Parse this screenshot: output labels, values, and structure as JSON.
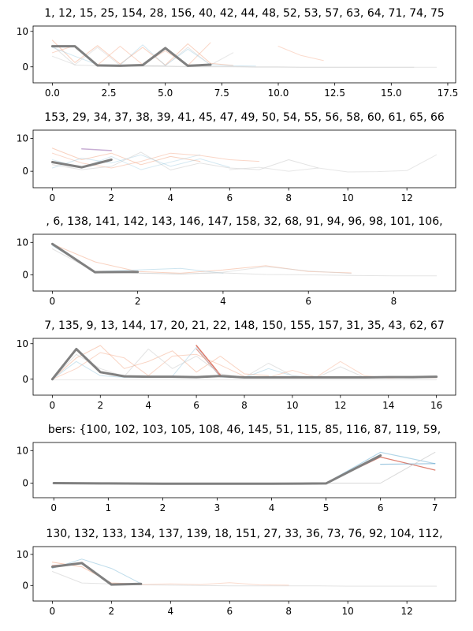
{
  "chart_data": [
    {
      "type": "line",
      "title": "1, 12, 15, 25, 154, 28, 156, 40, 42, 44, 48, 52, 53, 57, 63, 64, 71, 74, 75",
      "xlim": [
        -0.85,
        17.85
      ],
      "ylim": [
        -4.5,
        11.5
      ],
      "xticks": [
        0.0,
        2.5,
        5.0,
        7.5,
        10.0,
        12.5,
        15.0,
        17.5
      ],
      "xtick_labels": [
        "0.0",
        "2.5",
        "5.0",
        "7.5",
        "10.0",
        "12.5",
        "15.0",
        "17.5"
      ],
      "yticks": [
        0,
        10
      ],
      "ytick_labels": [
        "0",
        "10"
      ],
      "grid": false,
      "mean": {
        "x": [
          0,
          1,
          2,
          3,
          4,
          5,
          6,
          7
        ],
        "y": [
          5.8,
          5.8,
          0.4,
          0.3,
          0.5,
          5.3,
          0.3,
          0.6
        ]
      },
      "series": [
        {
          "color": "#f4a582",
          "opacity": 0.5,
          "width": 1,
          "x": [
            0,
            1,
            2,
            3,
            4,
            5,
            6,
            7,
            8
          ],
          "y": [
            7.5,
            1.2,
            6.0,
            0.8,
            5.5,
            0.5,
            6.5,
            1.0,
            0.4
          ]
        },
        {
          "color": "#f4a582",
          "opacity": 0.45,
          "width": 1,
          "x": [
            0,
            1,
            2,
            3,
            4,
            5,
            6,
            7
          ],
          "y": [
            4.0,
            6.0,
            0.5,
            5.8,
            0.6,
            4.5,
            0.4,
            6.8
          ]
        },
        {
          "color": "#92c5de",
          "opacity": 0.4,
          "width": 1,
          "x": [
            0,
            1,
            2,
            3,
            4,
            5,
            6,
            7,
            8,
            9
          ],
          "y": [
            5.5,
            3.0,
            0.6,
            0.5,
            6.2,
            0.4,
            5.0,
            0.6,
            0.3,
            0.2
          ]
        },
        {
          "color": "#d0d0d0",
          "opacity": 0.6,
          "width": 1,
          "x": [
            0,
            1,
            2,
            3,
            4,
            5,
            6,
            7,
            8,
            9,
            10,
            11,
            12,
            13,
            14,
            15,
            16
          ],
          "y": [
            6.0,
            0.5,
            0.3,
            0.2,
            0.3,
            0.2,
            0.1,
            0.1,
            0.1,
            0.0,
            0.0,
            -0.1,
            -0.1,
            -0.1,
            -0.1,
            -0.1,
            -0.1
          ]
        },
        {
          "color": "#f4a582",
          "opacity": 0.4,
          "width": 1,
          "x": [
            10,
            11,
            12
          ],
          "y": [
            5.8,
            3.2,
            1.8
          ]
        },
        {
          "color": "#d0d0d0",
          "opacity": 0.5,
          "width": 1,
          "x": [
            2,
            3,
            4,
            5,
            6,
            7,
            8,
            9,
            10,
            11,
            12,
            13,
            14,
            15,
            16,
            17
          ],
          "y": [
            0.3,
            0.2,
            0.1,
            0.1,
            0.0,
            0.0,
            0.0,
            -0.1,
            -0.1,
            -0.1,
            -0.1,
            -0.1,
            -0.1,
            -0.1,
            -0.1,
            -0.1
          ]
        },
        {
          "color": "#d0d0d0",
          "opacity": 0.5,
          "width": 1,
          "x": [
            0,
            1,
            2,
            3,
            4,
            5,
            6,
            7,
            8
          ],
          "y": [
            3.0,
            0.6,
            5.5,
            0.4,
            0.4,
            0.3,
            5.5,
            0.5,
            4.0
          ]
        }
      ]
    },
    {
      "type": "line",
      "title": "153, 29, 34, 37, 38, 39, 41, 45, 47, 49, 50, 54, 55, 56, 58, 60, 61, 65, 66",
      "xlim": [
        -0.65,
        13.65
      ],
      "ylim": [
        -5.0,
        12.5
      ],
      "xticks": [
        0,
        2,
        4,
        6,
        8,
        10,
        12
      ],
      "xtick_labels": [
        "0",
        "2",
        "4",
        "6",
        "8",
        "10",
        "12"
      ],
      "yticks": [
        0,
        10
      ],
      "ytick_labels": [
        "0",
        "10"
      ],
      "grid": false,
      "mean": {
        "x": [
          0,
          1,
          2
        ],
        "y": [
          2.8,
          1.2,
          3.5
        ]
      },
      "series": [
        {
          "color": "#c2a5cf",
          "opacity": 0.9,
          "width": 1.5,
          "x": [
            1,
            2
          ],
          "y": [
            6.8,
            6.3
          ]
        },
        {
          "color": "#f4a582",
          "opacity": 0.5,
          "width": 1,
          "x": [
            0,
            1,
            2,
            3,
            4,
            5
          ],
          "y": [
            7.0,
            3.5,
            5.5,
            2.0,
            4.5,
            3.0
          ]
        },
        {
          "color": "#f4a582",
          "opacity": 0.45,
          "width": 1,
          "x": [
            0,
            1,
            2,
            3,
            4,
            5,
            6,
            7
          ],
          "y": [
            5.5,
            2.5,
            1.0,
            3.0,
            5.5,
            4.8,
            3.5,
            3.0
          ]
        },
        {
          "color": "#92c5de",
          "opacity": 0.4,
          "width": 1,
          "x": [
            0,
            1,
            2,
            3,
            4,
            5,
            6
          ],
          "y": [
            1.0,
            4.0,
            2.5,
            5.0,
            1.5,
            3.8,
            1.2
          ]
        },
        {
          "color": "#d0d0d0",
          "opacity": 0.6,
          "width": 1,
          "x": [
            0,
            1,
            2,
            3,
            4,
            5,
            6,
            7,
            8,
            9
          ],
          "y": [
            2.0,
            0.5,
            1.5,
            5.8,
            0.4,
            2.5,
            1.0,
            0.5,
            3.5,
            1.0
          ]
        },
        {
          "color": "#d0d0d0",
          "opacity": 0.5,
          "width": 1,
          "x": [
            6,
            7,
            8,
            9,
            10,
            11,
            12,
            13
          ],
          "y": [
            0.5,
            1.2,
            0.0,
            1.0,
            -0.2,
            -0.1,
            0.2,
            5.0
          ]
        },
        {
          "color": "#92c5de",
          "opacity": 0.35,
          "width": 1,
          "x": [
            0,
            1,
            2,
            3,
            4,
            5
          ],
          "y": [
            3.5,
            1.0,
            4.5,
            0.5,
            2.8,
            5.0
          ]
        }
      ]
    },
    {
      "type": "line",
      "title": ", 6, 138, 141, 142, 143, 146, 147, 158, 32, 68, 91, 94, 96, 98, 101, 106,",
      "xlim": [
        -0.45,
        9.45
      ],
      "ylim": [
        -5.0,
        12.5
      ],
      "xticks": [
        0,
        2,
        4,
        6,
        8
      ],
      "xtick_labels": [
        "0",
        "2",
        "4",
        "6",
        "8"
      ],
      "yticks": [
        0,
        10
      ],
      "ytick_labels": [
        "0",
        "10"
      ],
      "grid": false,
      "mean": {
        "x": [
          0,
          1,
          2
        ],
        "y": [
          9.5,
          0.8,
          0.9
        ]
      },
      "series": [
        {
          "color": "#f4a582",
          "opacity": 0.5,
          "width": 1,
          "x": [
            0,
            1,
            2,
            3,
            4,
            5,
            6,
            7
          ],
          "y": [
            9.5,
            4.0,
            1.0,
            0.5,
            1.5,
            2.8,
            1.0,
            0.6
          ]
        },
        {
          "color": "#92c5de",
          "opacity": 0.45,
          "width": 1,
          "x": [
            0,
            1,
            2,
            3,
            4
          ],
          "y": [
            9.0,
            1.0,
            1.5,
            2.0,
            0.5
          ]
        },
        {
          "color": "#d0d0d0",
          "opacity": 0.6,
          "width": 1,
          "x": [
            0,
            1,
            2,
            3,
            4,
            5,
            6,
            7,
            8,
            9
          ],
          "y": [
            8.0,
            1.0,
            0.5,
            0.3,
            0.6,
            0.1,
            0.0,
            -0.2,
            -0.3,
            -0.3
          ]
        },
        {
          "color": "#d0d0d0",
          "opacity": 0.5,
          "width": 1,
          "x": [
            2,
            3,
            4,
            5,
            6,
            7
          ],
          "y": [
            0.6,
            0.2,
            0.8,
            2.5,
            1.2,
            0.4
          ]
        }
      ]
    },
    {
      "type": "line",
      "title": "7, 135, 9, 13, 144, 17, 20, 21, 22, 148, 150, 155, 157, 31, 35, 43, 62, 67",
      "xlim": [
        -0.8,
        16.8
      ],
      "ylim": [
        -4.5,
        11.5
      ],
      "xticks": [
        0,
        2,
        4,
        6,
        8,
        10,
        12,
        14,
        16
      ],
      "xtick_labels": [
        "0",
        "2",
        "4",
        "6",
        "8",
        "10",
        "12",
        "14",
        "16"
      ],
      "yticks": [
        0,
        10
      ],
      "ytick_labels": [
        "0",
        "10"
      ],
      "grid": false,
      "mean": {
        "x": [
          0,
          1,
          2,
          3,
          4,
          5,
          6,
          7,
          8,
          9,
          10,
          11,
          12,
          13,
          14,
          15,
          16
        ],
        "y": [
          0.0,
          8.5,
          2.0,
          0.8,
          0.7,
          0.7,
          0.6,
          0.9,
          0.5,
          0.5,
          0.5,
          0.5,
          0.5,
          0.5,
          0.6,
          0.6,
          0.7
        ]
      },
      "series": [
        {
          "color": "#d6604d",
          "opacity": 0.85,
          "width": 1.5,
          "x": [
            6,
            7
          ],
          "y": [
            9.5,
            1.2
          ]
        },
        {
          "color": "#d6604d",
          "opacity": 0.6,
          "width": 1.2,
          "x": [
            6,
            7
          ],
          "y": [
            8.5,
            0.8
          ]
        },
        {
          "color": "#f4a582",
          "opacity": 0.5,
          "width": 1,
          "x": [
            0,
            1,
            2,
            3,
            4,
            5,
            6,
            7,
            8,
            9
          ],
          "y": [
            0.0,
            6.0,
            9.5,
            3.0,
            5.0,
            8.0,
            2.0,
            6.5,
            1.5,
            1.0
          ]
        },
        {
          "color": "#f4a582",
          "opacity": 0.45,
          "width": 1,
          "x": [
            0,
            1,
            2,
            3,
            4,
            5,
            6,
            7,
            8
          ],
          "y": [
            0.0,
            3.0,
            7.5,
            6.0,
            1.0,
            6.5,
            7.0,
            4.0,
            0.8
          ]
        },
        {
          "color": "#92c5de",
          "opacity": 0.45,
          "width": 1,
          "x": [
            0,
            1,
            2,
            3,
            4,
            5,
            6,
            7,
            8,
            9,
            10,
            11
          ],
          "y": [
            0.0,
            5.0,
            1.0,
            0.5,
            0.6,
            0.8,
            9.0,
            0.6,
            0.4,
            3.0,
            1.0,
            0.5
          ]
        },
        {
          "color": "#d0d0d0",
          "opacity": 0.6,
          "width": 1,
          "x": [
            0,
            1,
            2,
            3,
            4,
            5,
            6,
            7,
            8,
            9,
            10,
            11,
            12,
            13,
            14,
            15,
            16
          ],
          "y": [
            0.0,
            7.0,
            3.0,
            0.8,
            8.5,
            3.0,
            6.5,
            1.5,
            0.5,
            4.5,
            1.0,
            0.4,
            3.5,
            0.5,
            0.4,
            0.3,
            0.5
          ]
        },
        {
          "color": "#f4a582",
          "opacity": 0.4,
          "width": 1,
          "x": [
            9,
            10,
            11,
            12,
            13,
            14,
            15,
            16
          ],
          "y": [
            0.5,
            2.5,
            0.6,
            5.0,
            1.0,
            0.3,
            0.5,
            0.4
          ]
        },
        {
          "color": "#d0d0d0",
          "opacity": 0.5,
          "width": 1,
          "x": [
            0,
            1,
            2,
            3,
            4,
            5,
            6,
            7,
            8,
            9,
            10,
            11,
            12,
            13,
            14,
            15,
            16
          ],
          "y": [
            -0.2,
            -0.2,
            -0.2,
            -0.2,
            -0.2,
            -0.2,
            -0.2,
            -0.2,
            -0.2,
            -0.2,
            -0.2,
            -0.2,
            -0.2,
            -0.2,
            -0.2,
            -0.2,
            -0.2
          ]
        }
      ]
    },
    {
      "type": "line",
      "title": "bers: {100, 102, 103, 105, 108, 46, 145, 51, 115, 85, 116, 87, 119, 59,",
      "xlim": [
        -0.38,
        7.38
      ],
      "ylim": [
        -4.5,
        12.5
      ],
      "xticks": [
        0,
        1,
        2,
        3,
        4,
        5,
        6,
        7
      ],
      "xtick_labels": [
        "0",
        "1",
        "2",
        "3",
        "4",
        "5",
        "6",
        "7"
      ],
      "yticks": [
        0,
        10
      ],
      "ytick_labels": [
        "0",
        "10"
      ],
      "grid": false,
      "mean": {
        "x": [
          0,
          1,
          2,
          3,
          4,
          5,
          6
        ],
        "y": [
          0.0,
          -0.1,
          -0.2,
          -0.2,
          -0.2,
          -0.1,
          8.5
        ]
      },
      "series": [
        {
          "color": "#d6604d",
          "opacity": 0.8,
          "width": 1.2,
          "x": [
            5,
            6,
            7
          ],
          "y": [
            0.0,
            8.0,
            4.0
          ]
        },
        {
          "color": "#92c5de",
          "opacity": 0.7,
          "width": 1.2,
          "x": [
            5,
            6,
            7
          ],
          "y": [
            0.0,
            9.5,
            6.0
          ]
        },
        {
          "color": "#4393c3",
          "opacity": 0.5,
          "width": 1.2,
          "x": [
            6,
            7
          ],
          "y": [
            5.8,
            6.0
          ]
        },
        {
          "color": "#d0d0d0",
          "opacity": 0.8,
          "width": 1,
          "x": [
            0,
            1,
            2,
            3,
            4,
            5,
            6,
            7
          ],
          "y": [
            0.0,
            0.0,
            0.0,
            0.0,
            0.0,
            0.0,
            0.0,
            9.5
          ]
        }
      ]
    },
    {
      "type": "line",
      "title": "130, 132, 133, 134, 137, 139, 18, 151, 27, 33, 36, 73, 76, 92, 104, 112,",
      "xlim": [
        -0.65,
        13.65
      ],
      "ylim": [
        -5.0,
        12.5
      ],
      "xticks": [
        0,
        2,
        4,
        6,
        8,
        10,
        12
      ],
      "xtick_labels": [
        "0",
        "2",
        "4",
        "6",
        "8",
        "10",
        "12"
      ],
      "yticks": [
        0,
        10
      ],
      "ytick_labels": [
        "0",
        "10"
      ],
      "grid": false,
      "mean": {
        "x": [
          0,
          1,
          2,
          3
        ],
        "y": [
          6.0,
          7.2,
          0.3,
          0.5
        ]
      },
      "series": [
        {
          "color": "#92c5de",
          "opacity": 0.6,
          "width": 1,
          "x": [
            0,
            1,
            2,
            3
          ],
          "y": [
            5.5,
            8.5,
            5.5,
            0.6
          ]
        },
        {
          "color": "#f4a582",
          "opacity": 0.6,
          "width": 1,
          "x": [
            0,
            1,
            2,
            3
          ],
          "y": [
            7.5,
            6.0,
            0.8,
            0.5
          ]
        },
        {
          "color": "#d6604d",
          "opacity": 0.5,
          "width": 1,
          "x": [
            0,
            1,
            2
          ],
          "y": [
            6.5,
            7.0,
            0.5
          ]
        },
        {
          "color": "#d0d0d0",
          "opacity": 0.6,
          "width": 1,
          "x": [
            0,
            1,
            2,
            3,
            4,
            5,
            6,
            7,
            8,
            9,
            10,
            11,
            12,
            13
          ],
          "y": [
            4.5,
            0.8,
            0.5,
            0.2,
            0.1,
            0.0,
            -0.1,
            -0.1,
            -0.1,
            -0.1,
            -0.2,
            -0.2,
            -0.2,
            -0.2
          ]
        },
        {
          "color": "#f4a582",
          "opacity": 0.4,
          "width": 1,
          "x": [
            2,
            3,
            4,
            5,
            6,
            7,
            8
          ],
          "y": [
            0.4,
            0.3,
            0.5,
            0.3,
            0.9,
            0.2,
            0.1
          ]
        }
      ]
    }
  ]
}
